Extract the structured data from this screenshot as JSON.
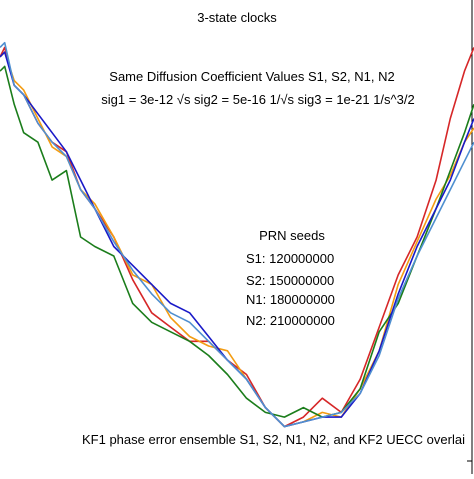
{
  "chart_data": {
    "type": "line",
    "title": "3-state clocks",
    "annotations": {
      "diffusion_heading": "Same Diffusion Coefficient Values S1, S2, N1, N2",
      "sigma_line": "sig1 = 3e-12 √s    sig2 = 5e-16 1/√s    sig3 = 1e-21 1/s^3/2",
      "seeds_heading": "PRN seeds",
      "seeds": [
        "S1: 120000000",
        "S2: 150000000",
        "N1: 180000000",
        "N2: 210000000"
      ],
      "footer": "KF1 phase error ensemble S1, S2, N1, N2, and KF2 UECC overlai"
    },
    "xlabel": "",
    "ylabel": "",
    "xlim": [
      0,
      100
    ],
    "ylim": [
      0,
      100
    ],
    "grid": false,
    "colors": {
      "red": "#d62728",
      "orange": "#f39c12",
      "green": "#1b7d1b",
      "blue": "#1a1ac8",
      "lightblue": "#4f8fd0"
    },
    "series": [
      {
        "color_key": "red",
        "x": [
          0,
          1,
          3,
          5,
          8,
          11,
          14,
          17,
          20,
          24,
          28,
          32,
          36,
          40,
          44,
          48,
          52,
          56,
          60,
          64,
          68,
          72,
          76,
          80,
          84,
          88,
          92,
          95,
          98,
          100
        ],
        "y": [
          88,
          90,
          82,
          80,
          74,
          70,
          68,
          60,
          56,
          50,
          41,
          34,
          31,
          28,
          28,
          24,
          21,
          14,
          10,
          12,
          16,
          13,
          20,
          31,
          42,
          50,
          62,
          75,
          85,
          90
        ]
      },
      {
        "color_key": "orange",
        "x": [
          0,
          1,
          3,
          5,
          8,
          11,
          14,
          17,
          20,
          24,
          28,
          32,
          36,
          40,
          44,
          48,
          52,
          56,
          60,
          64,
          68,
          72,
          76,
          80,
          84,
          88,
          92,
          95,
          98,
          100
        ],
        "y": [
          88,
          89,
          83,
          81,
          75,
          69,
          67,
          60,
          57,
          50,
          42,
          40,
          33,
          29,
          27,
          26,
          20,
          14,
          10,
          11,
          13,
          12,
          18,
          26,
          40,
          49,
          58,
          63,
          70,
          73
        ]
      },
      {
        "color_key": "green",
        "x": [
          0,
          1,
          3,
          5,
          8,
          11,
          14,
          17,
          20,
          24,
          28,
          32,
          36,
          40,
          44,
          48,
          52,
          56,
          60,
          64,
          68,
          72,
          76,
          80,
          84,
          88,
          92,
          95,
          98,
          100
        ],
        "y": [
          85,
          86,
          78,
          72,
          70,
          62,
          64,
          50,
          48,
          46,
          36,
          32,
          30,
          28,
          25,
          21,
          16,
          13,
          12,
          14,
          12,
          13,
          18,
          30,
          36,
          46,
          56,
          64,
          72,
          78
        ]
      },
      {
        "color_key": "blue",
        "x": [
          0,
          1,
          3,
          5,
          8,
          11,
          14,
          17,
          20,
          24,
          28,
          32,
          36,
          40,
          44,
          48,
          52,
          56,
          60,
          64,
          68,
          72,
          76,
          80,
          84,
          88,
          92,
          95,
          98,
          100
        ],
        "y": [
          88,
          89,
          82,
          80,
          76,
          72,
          68,
          62,
          56,
          48,
          44,
          40,
          36,
          34,
          29,
          24,
          20,
          14,
          10,
          11,
          12,
          12,
          17,
          26,
          38,
          48,
          56,
          62,
          70,
          75
        ]
      },
      {
        "color_key": "lightblue",
        "x": [
          0,
          1,
          3,
          5,
          8,
          11,
          14,
          17,
          20,
          24,
          28,
          32,
          36,
          40,
          44,
          48,
          52,
          56,
          60,
          64,
          68,
          72,
          76,
          80,
          84,
          88,
          92,
          95,
          98,
          100
        ],
        "y": [
          90,
          91,
          82,
          80,
          74,
          70,
          67,
          60,
          56,
          49,
          43,
          38,
          34,
          32,
          28,
          24,
          20,
          14,
          10,
          11,
          12,
          13,
          17,
          25,
          37,
          46,
          54,
          60,
          66,
          70
        ]
      }
    ]
  }
}
